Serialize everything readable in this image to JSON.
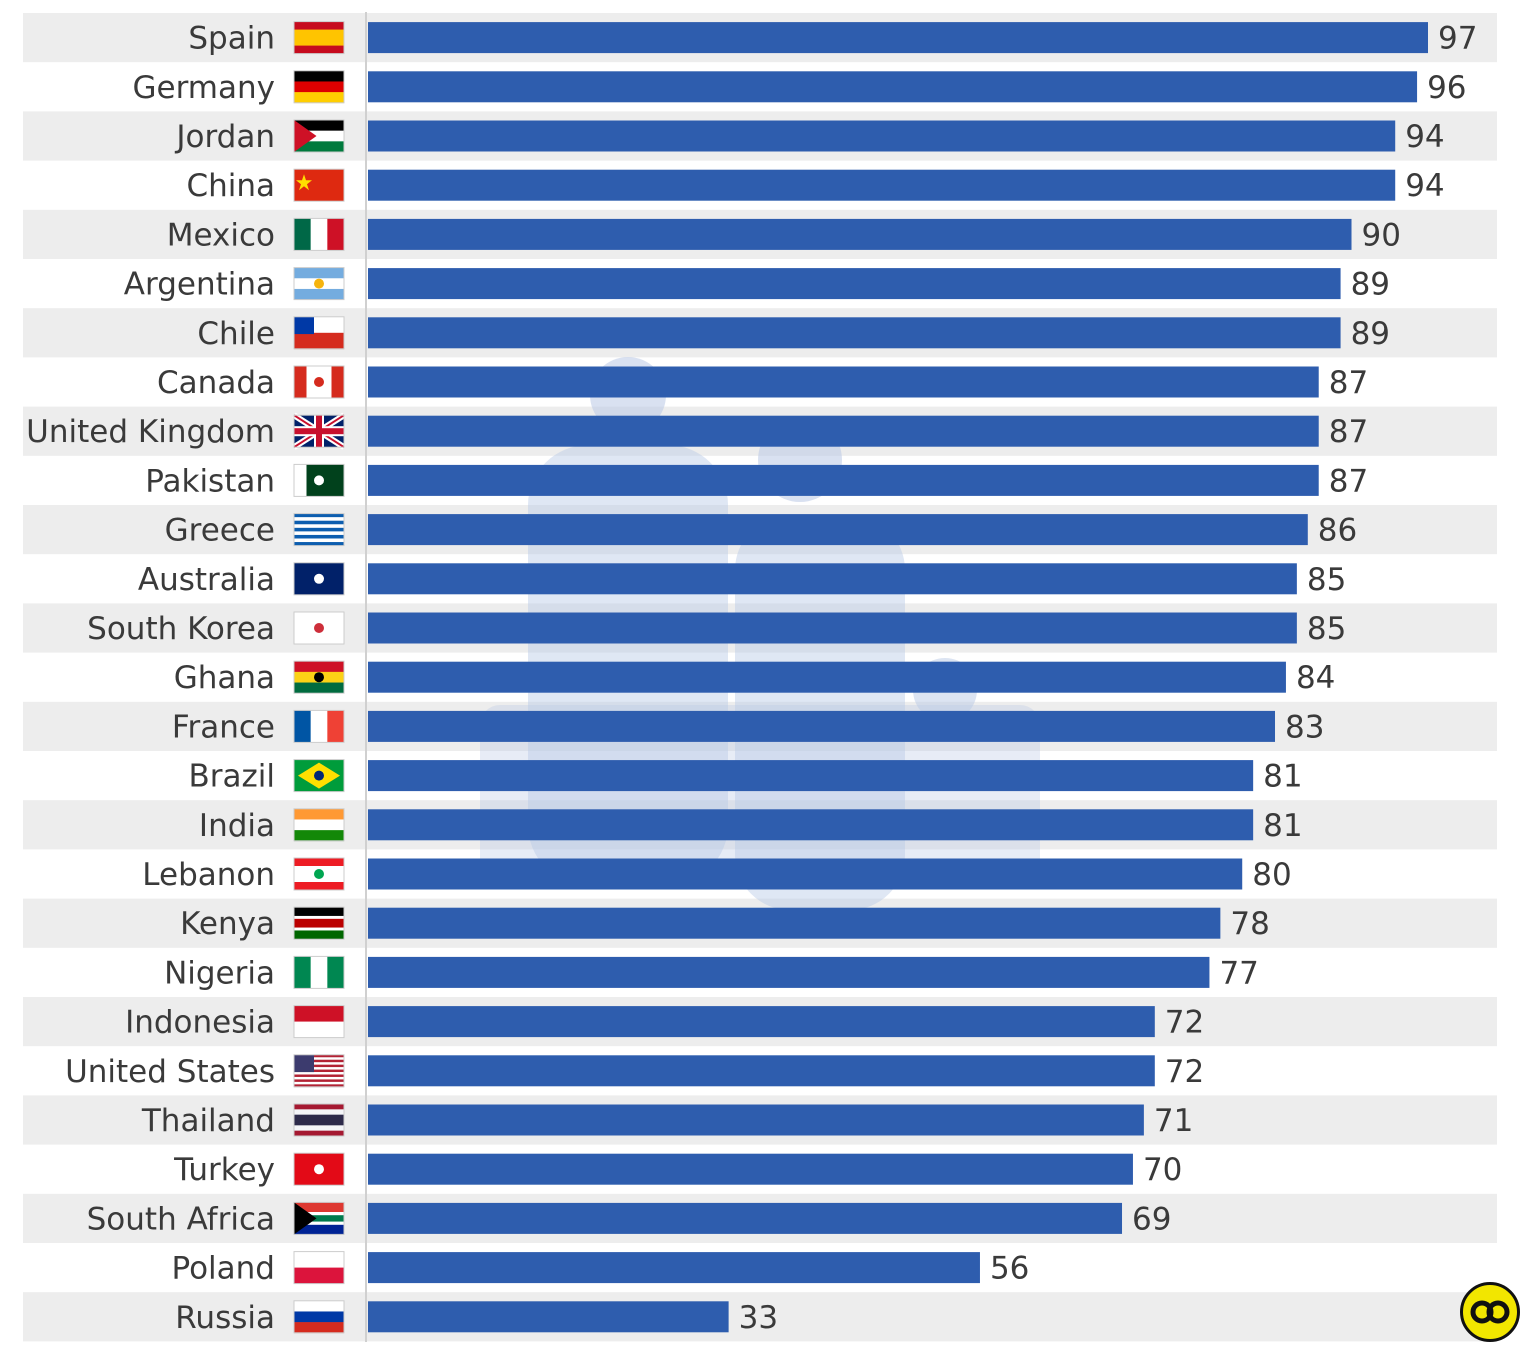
{
  "chart_data": {
    "type": "bar",
    "orientation": "horizontal",
    "categories": [
      "Spain",
      "Germany",
      "Jordan",
      "China",
      "Mexico",
      "Argentina",
      "Chile",
      "Canada",
      "United Kingdom",
      "Pakistan",
      "Greece",
      "Australia",
      "South Korea",
      "Ghana",
      "France",
      "Brazil",
      "India",
      "Lebanon",
      "Kenya",
      "Nigeria",
      "Indonesia",
      "United States",
      "Thailand",
      "Turkey",
      "South Africa",
      "Poland",
      "Russia"
    ],
    "values": [
      97,
      96,
      94,
      94,
      90,
      89,
      89,
      87,
      87,
      87,
      86,
      85,
      85,
      84,
      83,
      81,
      81,
      80,
      78,
      77,
      72,
      72,
      71,
      70,
      69,
      56,
      33
    ],
    "title": "",
    "xlabel": "",
    "ylabel": "",
    "xlim": [
      0,
      97
    ],
    "grid": false,
    "data_labels": true,
    "bar_color": "#2e5dae",
    "row_stripe_color": "#ededed"
  },
  "flags": {
    "Spain": {
      "type": "h",
      "colors": [
        "#c60b1e",
        "#ffc400",
        "#c60b1e"
      ],
      "weights": [
        1,
        2,
        1
      ]
    },
    "Germany": {
      "type": "h",
      "colors": [
        "#000000",
        "#dd0000",
        "#ffce00"
      ]
    },
    "Jordan": {
      "type": "h",
      "colors": [
        "#000000",
        "#ffffff",
        "#007a3d"
      ],
      "triangle": "#ce1126"
    },
    "China": {
      "type": "solid",
      "colors": [
        "#de2910"
      ],
      "star": "#ffde00"
    },
    "Mexico": {
      "type": "v",
      "colors": [
        "#006847",
        "#ffffff",
        "#ce1126"
      ]
    },
    "Argentina": {
      "type": "h",
      "colors": [
        "#74acdf",
        "#ffffff",
        "#74acdf"
      ],
      "dot": "#f6b40e"
    },
    "Chile": {
      "type": "h",
      "colors": [
        "#ffffff",
        "#d52b1e"
      ],
      "canton": "#0039a6"
    },
    "Canada": {
      "type": "v",
      "colors": [
        "#d52b1e",
        "#ffffff",
        "#d52b1e"
      ],
      "weights": [
        1,
        2,
        1
      ],
      "dot": "#d52b1e"
    },
    "United Kingdom": {
      "type": "uk",
      "colors": [
        "#012169",
        "#ffffff",
        "#c8102e"
      ]
    },
    "Pakistan": {
      "type": "v",
      "colors": [
        "#ffffff",
        "#01411c"
      ],
      "weights": [
        1,
        3
      ],
      "dot": "#ffffff"
    },
    "Greece": {
      "type": "stripes",
      "colors": [
        "#0d5eaf",
        "#ffffff"
      ],
      "count": 9
    },
    "Australia": {
      "type": "solid",
      "colors": [
        "#012169"
      ],
      "dot": "#ffffff"
    },
    "South Korea": {
      "type": "solid",
      "colors": [
        "#ffffff"
      ],
      "dot": "#cd2e3a"
    },
    "Ghana": {
      "type": "h",
      "colors": [
        "#ce1126",
        "#fcd116",
        "#006b3f"
      ],
      "dot": "#000000"
    },
    "France": {
      "type": "v",
      "colors": [
        "#0055a4",
        "#ffffff",
        "#ef4135"
      ]
    },
    "Brazil": {
      "type": "solid",
      "colors": [
        "#009c3b"
      ],
      "diamond": "#ffdf00",
      "dot": "#002776"
    },
    "India": {
      "type": "h",
      "colors": [
        "#ff9933",
        "#ffffff",
        "#138808"
      ]
    },
    "Lebanon": {
      "type": "h",
      "colors": [
        "#ed1c24",
        "#ffffff",
        "#ed1c24"
      ],
      "weights": [
        1,
        2,
        1
      ],
      "dot": "#00a651"
    },
    "Kenya": {
      "type": "h",
      "colors": [
        "#000000",
        "#ffffff",
        "#bb0000",
        "#ffffff",
        "#006600"
      ],
      "weights": [
        3,
        1,
        3,
        1,
        3
      ]
    },
    "Nigeria": {
      "type": "v",
      "colors": [
        "#008751",
        "#ffffff",
        "#008751"
      ]
    },
    "Indonesia": {
      "type": "h",
      "colors": [
        "#ce1126",
        "#ffffff"
      ]
    },
    "United States": {
      "type": "stripes",
      "colors": [
        "#b22234",
        "#ffffff"
      ],
      "count": 13,
      "canton": "#3c3b6e"
    },
    "Thailand": {
      "type": "h",
      "colors": [
        "#a51931",
        "#f4f5f8",
        "#2d2a4a",
        "#f4f5f8",
        "#a51931"
      ],
      "weights": [
        1,
        1,
        2,
        1,
        1
      ]
    },
    "Turkey": {
      "type": "solid",
      "colors": [
        "#e30a17"
      ],
      "dot": "#ffffff"
    },
    "South Africa": {
      "type": "h",
      "colors": [
        "#de3831",
        "#ffffff",
        "#007a4d",
        "#ffffff",
        "#002395"
      ],
      "weights": [
        3,
        1,
        2,
        1,
        3
      ],
      "triangle": "#000000"
    },
    "Poland": {
      "type": "h",
      "colors": [
        "#ffffff",
        "#dc143c"
      ]
    },
    "Russia": {
      "type": "h",
      "colors": [
        "#ffffff",
        "#0039a6",
        "#d52b1e"
      ]
    }
  }
}
